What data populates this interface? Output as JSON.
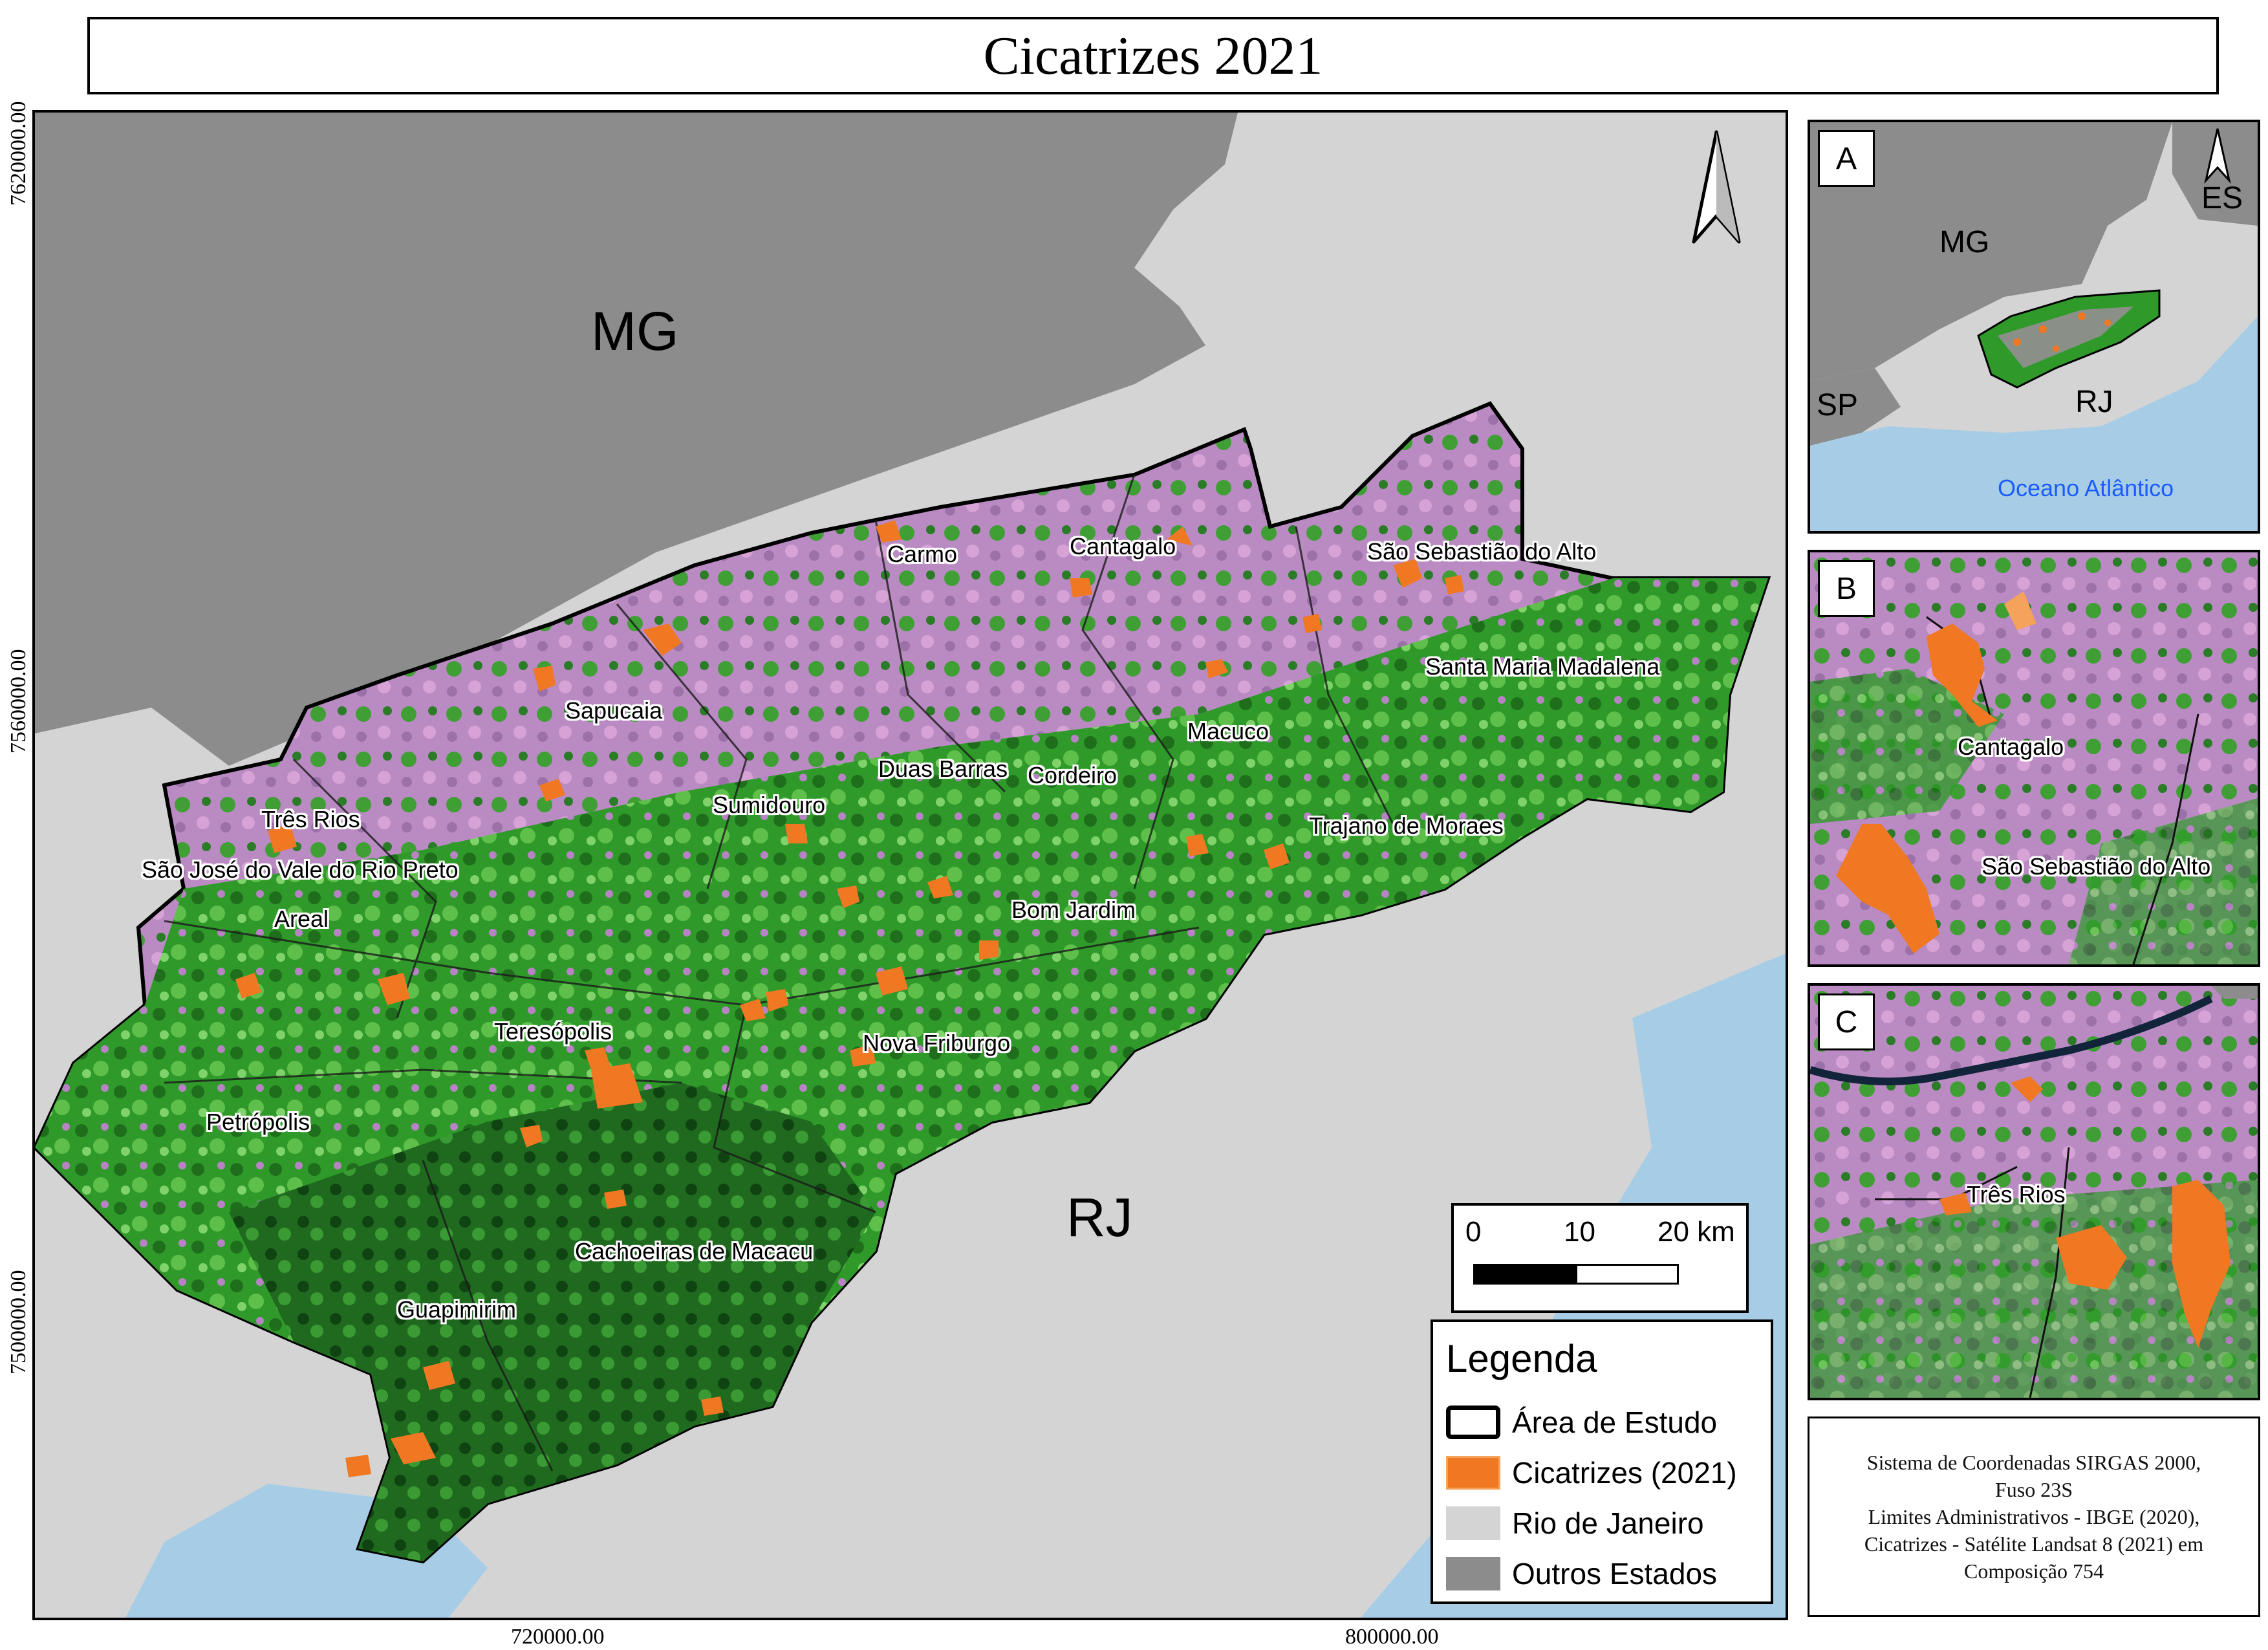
{
  "title": "Cicatrizes 2021",
  "axes": {
    "y_ticks": [
      "7620000.00",
      "7560000.00",
      "7500000.00"
    ],
    "x_ticks": [
      "720000.00",
      "800000.00"
    ]
  },
  "states": {
    "mg": "MG",
    "rj": "RJ"
  },
  "municipalities": [
    "Carmo",
    "Cantagalo",
    "São Sebastião do Alto",
    "Santa Maria Madalena",
    "Sapucaia",
    "Macuco",
    "Duas Barras",
    "Cordeiro",
    "Sumidouro",
    "Três Rios",
    "São José do Vale do Rio Preto",
    "Trajano de Moraes",
    "Areal",
    "Bom Jardim",
    "Teresópolis",
    "Nova Friburgo",
    "Petrópolis",
    "Cachoeiras de Macacu",
    "Guapimirim"
  ],
  "scale_bar": {
    "labels": [
      "0",
      "10",
      "20 km"
    ]
  },
  "inset_a": {
    "letter": "A",
    "labels": {
      "mg": "MG",
      "es": "ES",
      "sp": "SP",
      "rj": "RJ",
      "ocean": "Oceano Atlântico"
    },
    "ocean_color": "#1a5cff"
  },
  "inset_b": {
    "letter": "B",
    "labels": [
      "Cantagalo",
      "São Sebastião do Alto"
    ]
  },
  "inset_c": {
    "letter": "C",
    "labels": [
      "Três Rios"
    ]
  },
  "legend": {
    "title": "Legenda",
    "items": [
      {
        "label": "Área de Estudo",
        "color": "#ffffff"
      },
      {
        "label": "Cicatrizes (2021)",
        "color": "#f07822"
      },
      {
        "label": "Rio de Janeiro",
        "color": "#d4d4d4"
      },
      {
        "label": "Outros Estados",
        "color": "#8c8c8c"
      }
    ]
  },
  "credits": [
    "Sistema de Coordenadas SIRGAS 2000,",
    "Fuso 23S",
    "Limites Administrativos - IBGE (2020),",
    "Cicatrizes - Satélite Landsat 8 (2021) em",
    "Composição 754"
  ],
  "colors": {
    "scar": "#f07822",
    "vegetation": "#2f9a2a",
    "pink": "#c88ac8",
    "other_states": "#8c8c8c",
    "rj": "#d4d4d4",
    "water": "#a7cde6"
  }
}
